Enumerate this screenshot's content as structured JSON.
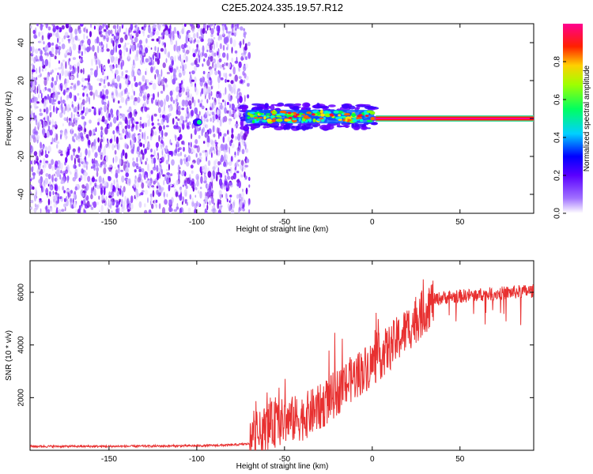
{
  "title": "C2E5.2024.335.19.57.R12",
  "chart_data": [
    {
      "type": "heatmap",
      "title": "C2E5.2024.335.19.57.R12",
      "xlabel": "Height of straight line (km)",
      "ylabel": "Frequency (Hz)",
      "xlim": [
        -195,
        92
      ],
      "ylim": [
        -50,
        50
      ],
      "x_ticks": [
        -150,
        -100,
        -50,
        0,
        50
      ],
      "y_ticks": [
        -40,
        -20,
        0,
        20,
        40
      ],
      "grid": false,
      "colorbar": {
        "label": "Normalized spectral amplitude",
        "range": [
          0,
          1
        ],
        "ticks": [
          0.0,
          0.2,
          0.4,
          0.6,
          0.8
        ],
        "colormap": [
          "#ffffff",
          "#7a00ff",
          "#0000ff",
          "#00ffff",
          "#00ff00",
          "#ffff00",
          "#ff0000",
          "#ff0080"
        ]
      },
      "regions": [
        {
          "x_range": [
            -195,
            -70
          ],
          "freq_range": [
            -50,
            50
          ],
          "amplitude": "0.0-0.2 noise"
        },
        {
          "x_range": [
            -101,
            -98
          ],
          "freq_center": -2,
          "amplitude": 0.4
        },
        {
          "x_range": [
            -75,
            2
          ],
          "freq_center": 1,
          "freq_halfwidth": 4,
          "amplitude": "0.3-0.8"
        },
        {
          "x_range": [
            2,
            92
          ],
          "freq_center": 0,
          "freq_halfwidth": 1,
          "amplitude": 1.0
        }
      ]
    },
    {
      "type": "line",
      "xlabel": "Height of straight line (km)",
      "ylabel": "SNR (10 * v/v)",
      "xlim": [
        -195,
        92
      ],
      "ylim": [
        0,
        7200
      ],
      "x_ticks": [
        -150,
        -100,
        -50,
        0,
        50
      ],
      "y_ticks": [
        2000,
        4000,
        6000
      ],
      "grid": false,
      "series": [
        {
          "color": "#e83030",
          "x": [
            -195,
            -150,
            -100,
            -80,
            -70,
            -65,
            -60,
            -50,
            -40,
            -30,
            -20,
            -10,
            0,
            10,
            20,
            30,
            35,
            40,
            50,
            60,
            70,
            80,
            92
          ],
          "y": [
            150,
            150,
            170,
            200,
            250,
            500,
            900,
            1100,
            1250,
            1600,
            2200,
            2800,
            3300,
            3900,
            4600,
            5300,
            5700,
            5800,
            5850,
            5900,
            5950,
            6000,
            6050
          ]
        }
      ]
    }
  ]
}
